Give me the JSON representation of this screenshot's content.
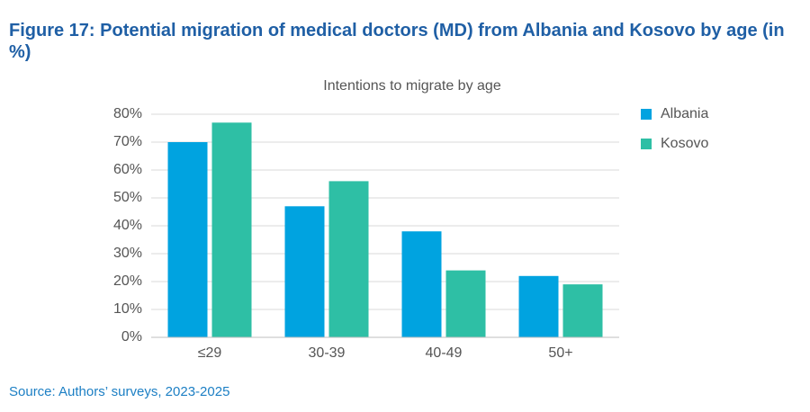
{
  "figure_title": "Figure 17: Potential migration of medical doctors (MD) from Albania and Kosovo by age (in %)",
  "source": "Source: Authors’ surveys, 2023-2025",
  "chart_data": {
    "type": "bar",
    "title": "Intentions to migrate by age",
    "categories": [
      "≤29",
      "30-39",
      "40-49",
      "50+"
    ],
    "series": [
      {
        "name": "Albania",
        "color": "#00a3e0",
        "values": [
          70,
          47,
          38,
          22
        ]
      },
      {
        "name": "Kosovo",
        "color": "#2ebfa5",
        "values": [
          77,
          56,
          24,
          19
        ]
      }
    ],
    "ylim": [
      0,
      80
    ],
    "yticks": [
      {
        "value": 0,
        "label": "0%"
      },
      {
        "value": 10,
        "label": "10%"
      },
      {
        "value": 20,
        "label": "20%"
      },
      {
        "value": 30,
        "label": "30%"
      },
      {
        "value": 40,
        "label": "40%"
      },
      {
        "value": 50,
        "label": "50%"
      },
      {
        "value": 60,
        "label": "60%"
      },
      {
        "value": 70,
        "label": "70%"
      },
      {
        "value": 80,
        "label": "80%"
      }
    ],
    "grid": true,
    "legend": "right"
  }
}
